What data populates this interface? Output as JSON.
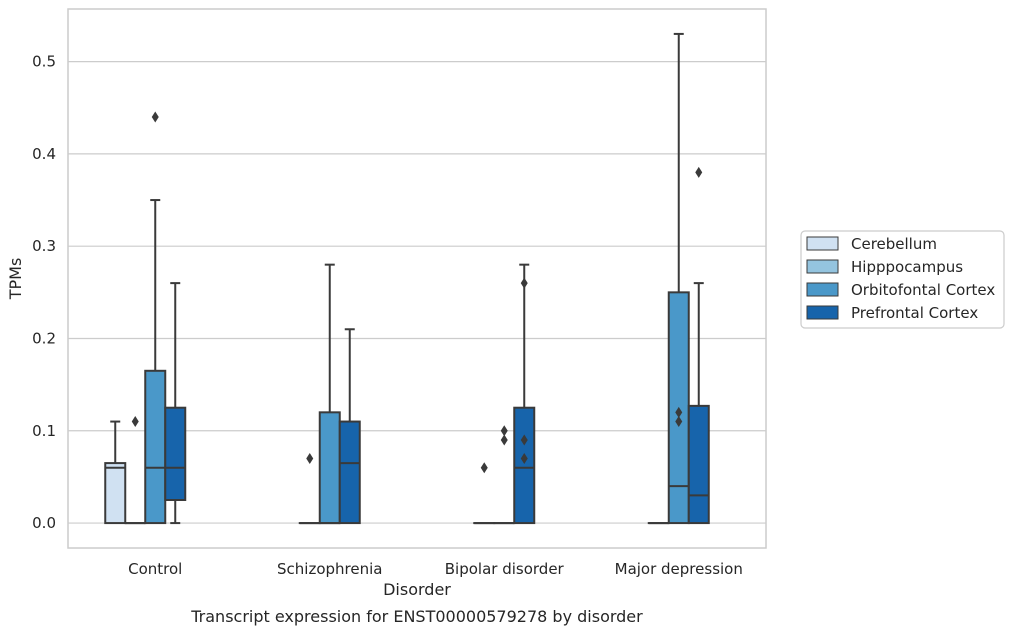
{
  "chart_data": {
    "type": "box",
    "xlabel": "Disorder",
    "ylabel": "TPMs",
    "caption": "Transcript expression for ENST00000579278 by disorder",
    "categories": [
      "Control",
      "Schizophrenia",
      "Bipolar disorder",
      "Major depression"
    ],
    "ylim": [
      -0.027,
      0.557
    ],
    "yticks": [
      0.0,
      0.1,
      0.2,
      0.3,
      0.4,
      0.5
    ],
    "ytick_labels": [
      "0.0",
      "0.1",
      "0.2",
      "0.3",
      "0.4",
      "0.5"
    ],
    "grid": true,
    "legend_position": "right",
    "series": [
      {
        "name": "Cerebellum",
        "color": "#d0e1f2",
        "boxes": [
          {
            "q1": 0.0,
            "median": 0.06,
            "q3": 0.065,
            "whisker_low": 0.0,
            "whisker_high": 0.11,
            "outliers": []
          },
          null,
          null,
          null
        ]
      },
      {
        "name": "Hipppocampus",
        "color": "#94c4df",
        "boxes": [
          {
            "q1": 0.0,
            "median": 0.0,
            "q3": 0.0,
            "whisker_low": 0.0,
            "whisker_high": 0.0,
            "outliers": [
              0.11
            ]
          },
          {
            "q1": 0.0,
            "median": 0.0,
            "q3": 0.0,
            "whisker_low": 0.0,
            "whisker_high": 0.0,
            "outliers": [
              0.07
            ]
          },
          {
            "q1": 0.0,
            "median": 0.0,
            "q3": 0.0,
            "whisker_low": 0.0,
            "whisker_high": 0.0,
            "outliers": [
              0.06
            ]
          },
          {
            "q1": 0.0,
            "median": 0.0,
            "q3": 0.0,
            "whisker_low": 0.0,
            "whisker_high": 0.0,
            "outliers": []
          }
        ]
      },
      {
        "name": "Orbitofontal Cortex",
        "color": "#4a98c9",
        "boxes": [
          {
            "q1": 0.0,
            "median": 0.06,
            "q3": 0.165,
            "whisker_low": 0.0,
            "whisker_high": 0.35,
            "outliers": [
              0.44
            ]
          },
          {
            "q1": 0.0,
            "median": 0.0,
            "q3": 0.12,
            "whisker_low": 0.0,
            "whisker_high": 0.28,
            "outliers": []
          },
          {
            "q1": 0.0,
            "median": 0.0,
            "q3": 0.0,
            "whisker_low": 0.0,
            "whisker_high": 0.0,
            "outliers": [
              0.09,
              0.1
            ]
          },
          {
            "q1": 0.0,
            "median": 0.04,
            "q3": 0.25,
            "whisker_low": 0.0,
            "whisker_high": 0.53,
            "outliers": [
              0.11,
              0.12
            ]
          }
        ]
      },
      {
        "name": "Prefrontal Cortex",
        "color": "#1764ab",
        "boxes": [
          {
            "q1": 0.025,
            "median": 0.06,
            "q3": 0.125,
            "whisker_low": 0.0,
            "whisker_high": 0.26,
            "outliers": []
          },
          {
            "q1": 0.0,
            "median": 0.065,
            "q3": 0.11,
            "whisker_low": 0.0,
            "whisker_high": 0.21,
            "outliers": []
          },
          {
            "q1": 0.0,
            "median": 0.06,
            "q3": 0.125,
            "whisker_low": 0.0,
            "whisker_high": 0.28,
            "outliers": [
              0.07,
              0.09,
              0.26
            ]
          },
          {
            "q1": 0.0,
            "median": 0.03,
            "q3": 0.127,
            "whisker_low": 0.0,
            "whisker_high": 0.26,
            "outliers": [
              0.38
            ]
          }
        ]
      }
    ]
  }
}
